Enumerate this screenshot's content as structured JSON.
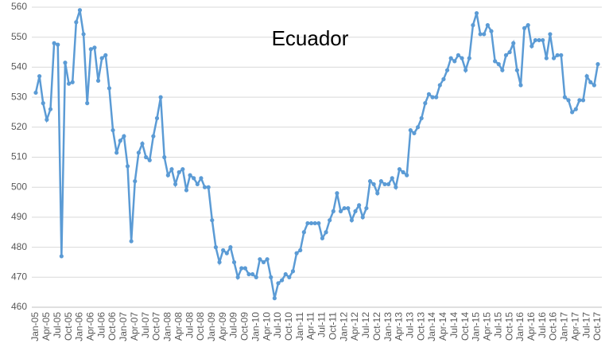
{
  "chart_data": {
    "type": "line",
    "title": "Ecuador",
    "categories": [
      "Jan-05",
      null,
      null,
      "Apr-05",
      null,
      null,
      "Jul-05",
      null,
      null,
      "Oct-05",
      null,
      null,
      "Jan-06",
      null,
      null,
      "Apr-06",
      null,
      null,
      "Jul-06",
      null,
      null,
      "Oct-06",
      null,
      null,
      "Jan-07",
      null,
      null,
      "Apr-07",
      null,
      null,
      "Jul-07",
      null,
      null,
      "Oct-07",
      null,
      null,
      "Jan-08",
      null,
      null,
      "Apr-08",
      null,
      null,
      "Jul-08",
      null,
      null,
      "Oct-08",
      null,
      null,
      "Jan-09",
      null,
      null,
      "Apr-09",
      null,
      null,
      "Jul-09",
      null,
      null,
      "Oct-09",
      null,
      null,
      "Jan-10",
      null,
      null,
      "Apr-10",
      null,
      null,
      "Jul-10",
      null,
      null,
      "Oct-10",
      null,
      null,
      "Jan-11",
      null,
      null,
      "Apr-11",
      null,
      null,
      "Jul-11",
      null,
      null,
      "Oct-11",
      null,
      null,
      "Jan-12",
      null,
      null,
      "Apr-12",
      null,
      null,
      "Jul-12",
      null,
      null,
      "Oct-12",
      null,
      null,
      "Jan-13",
      null,
      null,
      "Apr-13",
      null,
      null,
      "Jul-13",
      null,
      null,
      "Oct-13",
      null,
      null,
      "Jan-14",
      null,
      null,
      "Apr-14",
      null,
      null,
      "Jul-14",
      null,
      null,
      "Oct-14",
      null,
      null,
      "Jan-15",
      null,
      null,
      "Apr-15",
      null,
      null,
      "Jul-15",
      null,
      null,
      "Oct-15",
      null,
      null,
      "Jan-16",
      null,
      null,
      "Apr-16",
      null,
      null,
      "Jul-16",
      null,
      null,
      "Oct-16",
      null,
      null,
      "Jan-17",
      null,
      null,
      "Apr-17",
      null,
      null,
      "Jul-17",
      null,
      null,
      "Oct-17"
    ],
    "values": [
      531.5,
      537,
      528,
      522.5,
      526,
      548,
      547.5,
      477,
      541.5,
      534.5,
      535,
      555,
      559,
      551,
      528,
      546,
      546.5,
      535.5,
      543,
      544,
      533,
      519,
      511.5,
      515.5,
      517,
      507,
      482,
      502,
      511.5,
      514.5,
      510,
      509,
      517,
      523,
      530,
      510,
      504,
      506,
      501,
      505,
      506,
      499,
      504,
      503,
      501,
      503,
      500,
      500,
      489,
      480,
      475,
      479,
      478,
      480,
      475,
      470,
      473,
      473,
      471,
      471,
      470,
      476,
      475,
      476,
      470,
      463,
      468,
      469,
      471,
      470,
      472,
      478,
      479,
      485,
      488,
      488,
      488,
      488,
      483,
      485,
      489,
      492,
      498,
      492,
      493,
      493,
      489,
      492,
      494,
      490,
      493,
      502,
      501,
      498,
      502,
      501,
      501,
      503,
      500,
      506,
      505,
      504,
      519,
      518,
      520,
      523,
      528,
      531,
      530,
      530,
      534,
      536,
      539,
      543,
      542,
      544,
      543,
      539,
      543,
      554,
      558,
      551,
      551,
      554,
      552,
      542,
      541,
      539,
      544,
      545,
      548,
      539,
      534,
      553,
      554,
      547,
      549,
      549,
      549,
      543,
      551,
      543,
      544,
      544,
      530,
      529,
      525,
      526,
      529,
      529,
      537,
      535,
      534,
      541
    ],
    "color": "#5b9bd5",
    "ylim": [
      460,
      560
    ],
    "yticks": [
      460,
      470,
      480,
      490,
      500,
      510,
      520,
      530,
      540,
      550,
      560
    ],
    "grid": true
  }
}
